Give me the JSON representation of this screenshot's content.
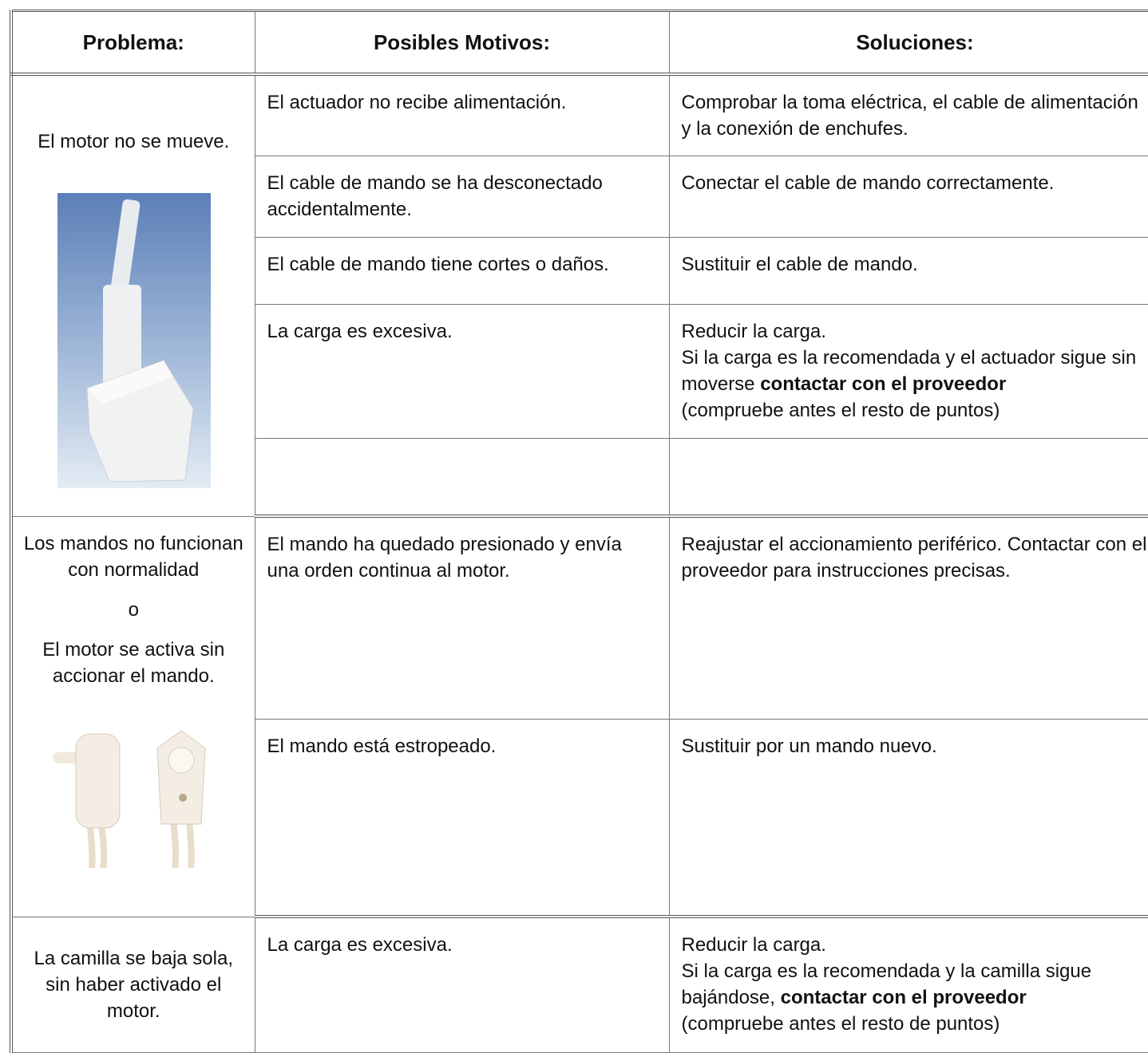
{
  "table": {
    "headers": [
      "Problema:",
      "Posibles Motivos:",
      "Soluciones:"
    ],
    "groups": [
      {
        "problem": [
          "El motor no se mueve."
        ],
        "rows": [
          {
            "reason": "El actuador no recibe alimentación.",
            "solution": [
              "Comprobar la toma eléctrica, el cable de alimentación y la conexión de enchufes."
            ]
          },
          {
            "reason": "El cable de mando se ha desconectado accidentalmente.",
            "solution": [
              "Conectar el cable de mando correctamente."
            ]
          },
          {
            "reason": "El cable de mando tiene cortes o daños.",
            "solution": [
              "Sustituir el cable de mando."
            ]
          },
          {
            "reason": "La carga es excesiva.",
            "solution": [
              "Reducir la carga.",
              "Si la carga es la recomendada y el actuador sigue sin moverse",
              "contactar con el proveedor",
              "(compruebe antes el resto de puntos)"
            ]
          }
        ]
      },
      {
        "problem": [
          "Los mandos no funcionan con normalidad",
          "o",
          "El motor se activa sin accionar el mando."
        ],
        "rows": [
          {
            "reason": "El mando ha quedado presionado y envía una orden continua al motor.",
            "solution": [
              "Reajustar el accionamiento periférico. Contactar con el proveedor para instrucciones precisas."
            ]
          },
          {
            "reason": "El mando está estropeado.",
            "solution": [
              "Sustituir por un mando nuevo."
            ]
          }
        ]
      },
      {
        "problem": [
          "La camilla se baja sola, sin haber activado el motor."
        ],
        "rows": [
          {
            "reason": "La carga es excesiva.",
            "solution": [
              "Reducir la carga.",
              "Si la carga es la recomendada y la camilla sigue bajándose,",
              "contactar con el proveedor",
              "(compruebe antes el resto de puntos)"
            ]
          }
        ]
      }
    ]
  }
}
